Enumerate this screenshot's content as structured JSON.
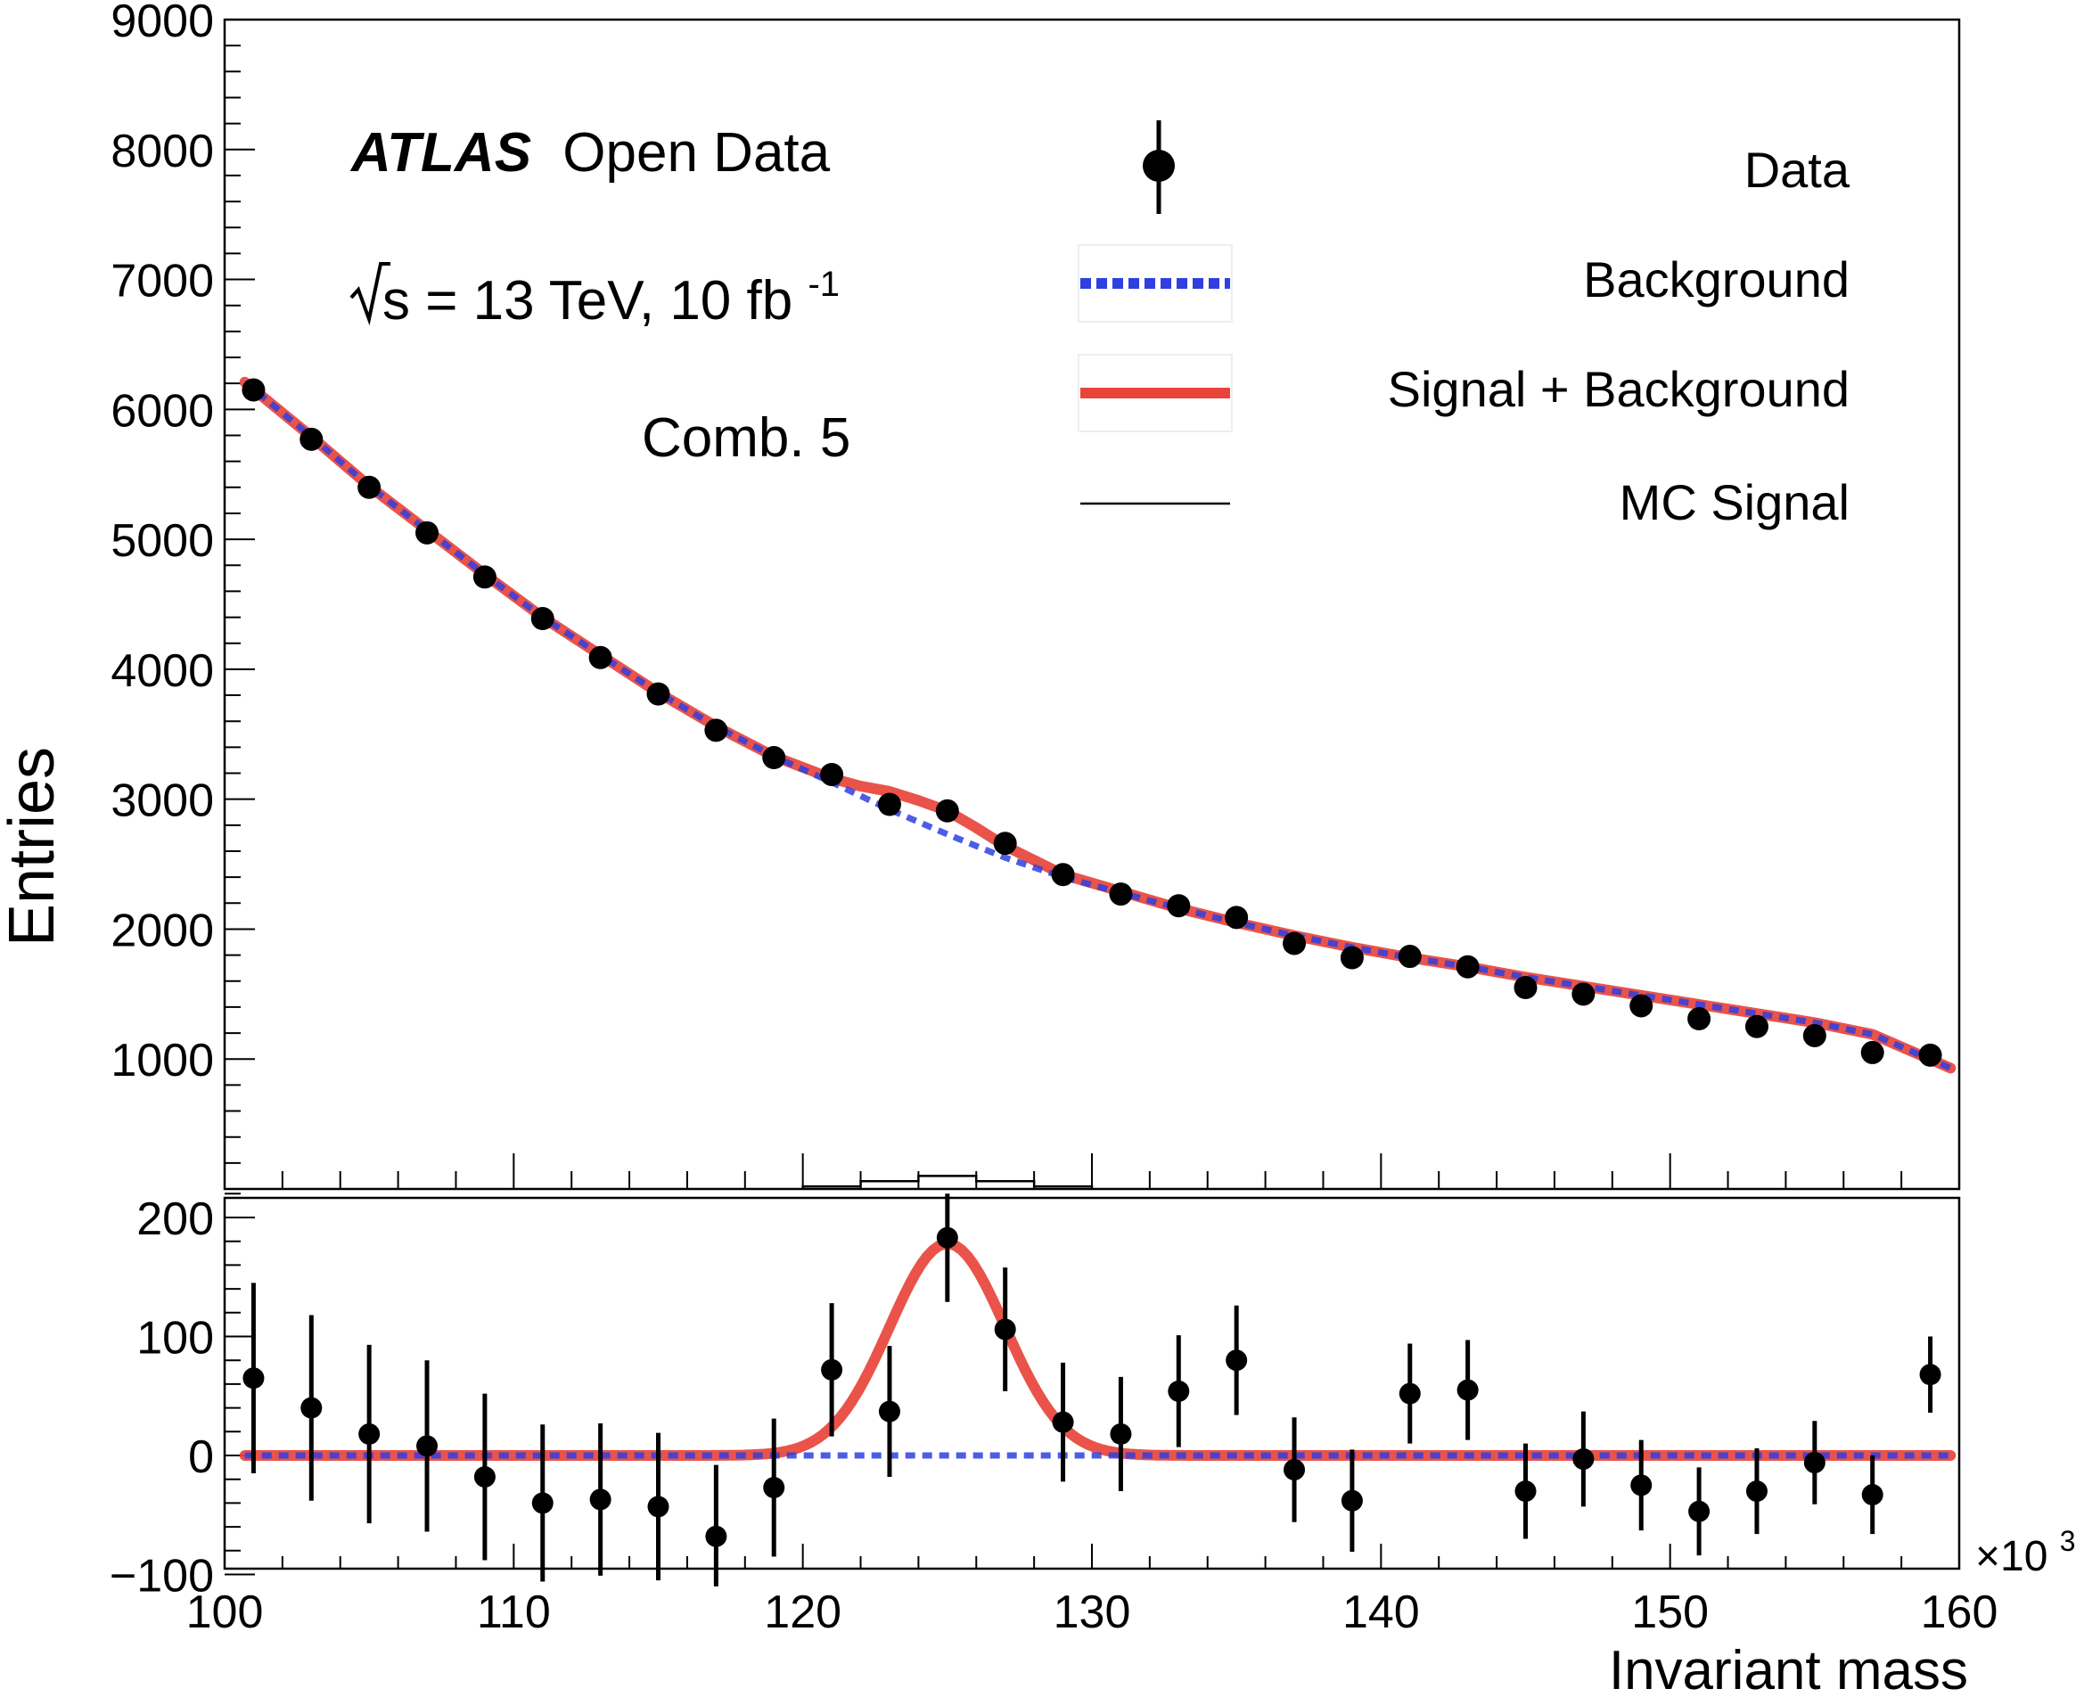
{
  "chart_data": [
    {
      "panel": "main",
      "type": "scatter",
      "ylabel": "Entries",
      "ylim": [
        0,
        9000
      ],
      "yticks": [
        "1000",
        "2000",
        "3000",
        "4000",
        "5000",
        "6000",
        "7000",
        "8000",
        "9000"
      ],
      "xlim": [
        100,
        160
      ],
      "annotations": {
        "experiment": "ATLAS",
        "experiment_suffix": "Open Data",
        "energy_prefix": "s = 13 TeV, 10 fb",
        "energy_sup": "-1",
        "category": "Comb. 5"
      },
      "legend": {
        "placement": "top-right",
        "entries": [
          "Data",
          "Background",
          "Signal + Background",
          "MC Signal"
        ]
      },
      "series": [
        {
          "name": "Data",
          "kind": "points",
          "x": [
            101,
            103,
            105,
            107,
            109,
            111,
            113,
            115,
            117,
            119,
            121,
            123,
            125,
            127,
            129,
            131,
            133,
            135,
            137,
            139,
            141,
            143,
            145,
            147,
            149,
            151,
            153,
            155,
            157,
            159
          ],
          "y": [
            6150,
            5770,
            5400,
            5050,
            4710,
            4390,
            4090,
            3810,
            3530,
            3320,
            3190,
            2960,
            2910,
            2660,
            2420,
            2270,
            2180,
            2090,
            1890,
            1780,
            1790,
            1710,
            1550,
            1500,
            1410,
            1310,
            1250,
            1180,
            1050,
            1030
          ]
        },
        {
          "name": "Background",
          "kind": "dashed-line",
          "color": "#2f3fe0",
          "x": [
            100.7,
            103,
            105,
            107,
            109,
            111,
            113,
            115,
            117,
            119,
            121,
            123,
            125,
            127,
            129,
            131,
            133,
            135,
            137,
            139,
            141,
            143,
            145,
            147,
            149,
            151,
            153,
            155,
            157,
            159.7
          ],
          "y": [
            6210,
            5790,
            5410,
            5070,
            4730,
            4400,
            4110,
            3820,
            3560,
            3330,
            3130,
            2920,
            2730,
            2550,
            2400,
            2280,
            2160,
            2050,
            1950,
            1860,
            1780,
            1710,
            1630,
            1560,
            1490,
            1420,
            1350,
            1280,
            1190,
            930
          ]
        },
        {
          "name": "Signal + Background",
          "kind": "line",
          "color": "#e8443a",
          "x": [
            100.7,
            103,
            105,
            107,
            109,
            111,
            113,
            115,
            117,
            119,
            121,
            122,
            123,
            124,
            125,
            126,
            127,
            128,
            129,
            131,
            133,
            135,
            137,
            139,
            141,
            143,
            145,
            147,
            149,
            151,
            153,
            155,
            157,
            159.7
          ],
          "y": [
            6210,
            5790,
            5410,
            5070,
            4730,
            4400,
            4110,
            3820,
            3560,
            3330,
            3160,
            3100,
            3060,
            2990,
            2910,
            2780,
            2640,
            2530,
            2420,
            2290,
            2160,
            2050,
            1950,
            1860,
            1780,
            1710,
            1630,
            1560,
            1490,
            1420,
            1350,
            1280,
            1190,
            930
          ]
        },
        {
          "name": "MC Signal",
          "kind": "step",
          "color": "#000000",
          "x_edges": [
            120,
            122,
            124,
            126,
            128,
            130
          ],
          "y": [
            20,
            60,
            100,
            60,
            20
          ]
        }
      ]
    },
    {
      "panel": "residual",
      "type": "scatter",
      "xlabel": "Invariant mass",
      "x_multiplier": "×10",
      "x_multiplier_exp": "3",
      "xlim": [
        100,
        160
      ],
      "xticks": [
        "100",
        "110",
        "120",
        "130",
        "140",
        "150",
        "160"
      ],
      "ylim": [
        -100,
        220
      ],
      "yticks": [
        "200",
        "100",
        "0",
        "−100"
      ],
      "series": [
        {
          "name": "Data",
          "kind": "points",
          "x": [
            101,
            103,
            105,
            107,
            109,
            111,
            113,
            115,
            117,
            119,
            121,
            123,
            125,
            127,
            129,
            131,
            133,
            135,
            137,
            139,
            141,
            143,
            145,
            147,
            149,
            151,
            153,
            155,
            157,
            159
          ],
          "y": [
            65,
            40,
            18,
            8,
            -18,
            -40,
            -37,
            -43,
            -68,
            -27,
            72,
            37,
            183,
            106,
            28,
            18,
            54,
            80,
            -12,
            -38,
            52,
            55,
            -30,
            -3,
            -25,
            -47,
            -30,
            -6,
            -33,
            68
          ],
          "err": [
            80,
            78,
            75,
            72,
            70,
            66,
            64,
            62,
            60,
            58,
            56,
            55,
            54,
            52,
            50,
            48,
            47,
            46,
            44,
            43,
            42,
            42,
            40,
            40,
            38,
            37,
            36,
            35,
            33,
            32
          ]
        },
        {
          "name": "Background",
          "kind": "dashed-line",
          "color": "#2f3fe0",
          "x": [
            100.7,
            159.7
          ],
          "y": [
            0,
            0
          ]
        },
        {
          "name": "Signal + Background",
          "kind": "gaussian",
          "color": "#e8443a",
          "amplitude": 178,
          "mean": 125,
          "sigma": 2.0,
          "x_range": [
            100.7,
            159.7
          ]
        }
      ]
    }
  ]
}
